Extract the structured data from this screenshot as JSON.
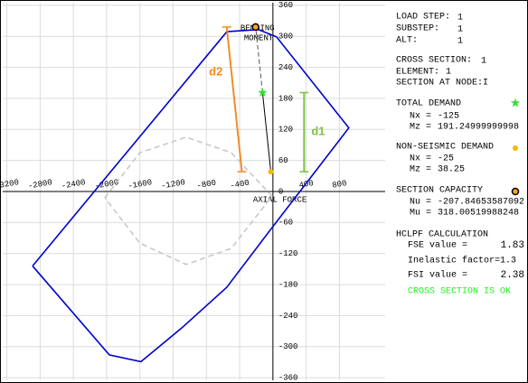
{
  "chart_data": {
    "type": "interaction",
    "xlim": [
      -3250,
      1350
    ],
    "ylim": [
      -365,
      365
    ],
    "xticks": [
      -3200,
      -2800,
      -2400,
      -2000,
      -1600,
      -1200,
      -800,
      -400,
      400,
      800
    ],
    "yticks": [
      360,
      300,
      240,
      180,
      120,
      60,
      0,
      -60,
      -120,
      -180,
      -240,
      -300,
      -360
    ],
    "grid": true,
    "x_label": "AXIAL FORCE",
    "y_label": [
      "BENDING",
      "MOMENT"
    ],
    "series": [
      {
        "color": "#0000cc",
        "style": "solid",
        "x": [
          -2891,
          -554,
          -174,
          43,
          913,
          -11,
          -554,
          -1098,
          -1587,
          -1967,
          -2891
        ],
        "y": [
          -144,
          309,
          313,
          299,
          123,
          -70,
          -185,
          -264,
          -329,
          -316,
          -144
        ]
      },
      {
        "color": "#c8c8c8",
        "style": "dashed",
        "x": [
          -2022,
          -1600,
          -1043,
          -500,
          -11,
          -500,
          -1043,
          -1600,
          -2022
        ],
        "y": [
          -12,
          75,
          105,
          75,
          -9,
          -110,
          -141,
          -100,
          -12
        ]
      }
    ],
    "points": [
      {
        "x": -125,
        "y": 191.24999999998,
        "color": "#33dd33",
        "marker": "star"
      },
      {
        "x": -25,
        "y": 38.25,
        "color": "#f5b800",
        "marker": "dot"
      },
      {
        "x": -207.84653587092,
        "y": 318.00519988248,
        "color": "#f5a623",
        "marker": "ring"
      }
    ],
    "annotations": [
      {
        "text": "d1",
        "color": "#7dc242"
      },
      {
        "text": "d2",
        "color": "#f28c28"
      }
    ]
  },
  "panel": {
    "load_step": "LOAD STEP:",
    "load_step_value": "1",
    "substep": "SUBSTEP:",
    "substep_value": "1",
    "alt": "ALT:",
    "alt_value": "1",
    "cross_section": "CROSS SECTION:",
    "cross_section_value": "1",
    "element": "ELEMENT:",
    "element_value": "1",
    "section_at_node": "SECTION AT NODE:I",
    "total_demand": "TOTAL DEMAND",
    "non_seismic_demand": "NON-SEISMIC DEMAND",
    "section_capacity": "SECTION CAPACITY",
    "nx": "Nx =",
    "mz": "Mz =",
    "nu": "Nu =",
    "mu": "Mu =",
    "hclpf": "HCLPF CALCULATION",
    "fse": "FSE value =",
    "fse_value": "1.83",
    "inelastic": "Inelastic factor=1.3",
    "fsi": "FSI value  =",
    "fsi_value": "2.38",
    "status": "CROSS SECTION IS OK"
  }
}
